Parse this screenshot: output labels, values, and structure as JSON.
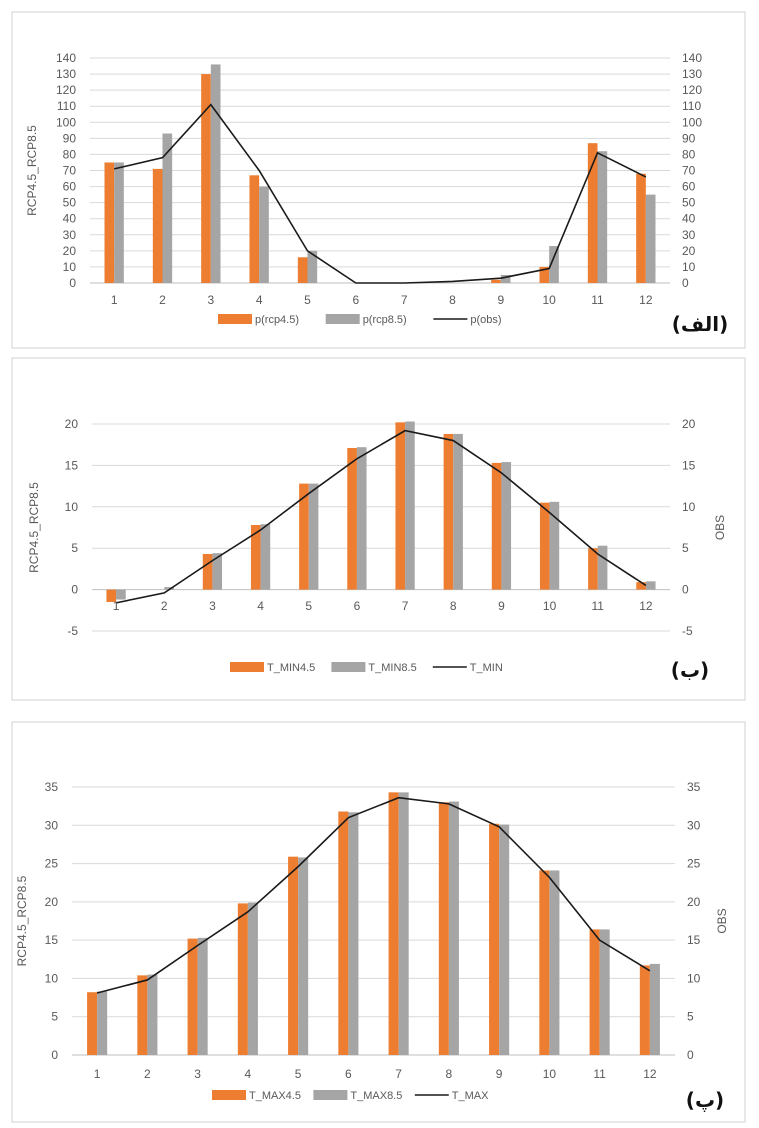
{
  "colors": {
    "rcp45": "#ED7D31",
    "rcp85": "#A5A5A5",
    "obs": "#1a1a1a"
  },
  "chart_data": [
    {
      "panel_label": "(الف)",
      "type": "bar",
      "categories": [
        "1",
        "2",
        "3",
        "4",
        "5",
        "6",
        "7",
        "8",
        "9",
        "10",
        "11",
        "12"
      ],
      "ylabel_left": "RCP4.5_RCP8.5",
      "ylabel_right": "",
      "ylim": [
        0,
        140
      ],
      "ystep": 10,
      "series": [
        {
          "name": "p(rcp4.5)",
          "kind": "bar",
          "values": [
            75,
            71,
            130,
            67,
            16,
            0,
            0,
            0,
            2,
            10,
            87,
            68
          ]
        },
        {
          "name": "p(rcp8.5)",
          "kind": "bar",
          "values": [
            75,
            93,
            136,
            60,
            20,
            0,
            0,
            0,
            5,
            23,
            82,
            55
          ]
        },
        {
          "name": "p(obs)",
          "kind": "line",
          "values": [
            71,
            78,
            111,
            70,
            20,
            0,
            0,
            1,
            3,
            9,
            81,
            66
          ]
        }
      ],
      "legend": "bottom"
    },
    {
      "panel_label": "(ب)",
      "type": "bar",
      "categories": [
        "1",
        "2",
        "3",
        "4",
        "5",
        "6",
        "7",
        "8",
        "9",
        "10",
        "11",
        "12"
      ],
      "ylabel_left": "RCP4.5_RCP8.5",
      "ylabel_right": "OBS",
      "ylim": [
        -5,
        20
      ],
      "ystep": 5,
      "series": [
        {
          "name": "T_MIN4.5",
          "kind": "bar",
          "values": [
            -1.5,
            0,
            4.3,
            7.8,
            12.8,
            17.1,
            20.2,
            18.8,
            15.3,
            10.5,
            5.0,
            0.9
          ]
        },
        {
          "name": "T_MIN8.5",
          "kind": "bar",
          "values": [
            -1.2,
            0.3,
            4.4,
            7.9,
            12.8,
            17.2,
            20.3,
            18.8,
            15.4,
            10.6,
            5.3,
            1.0
          ]
        },
        {
          "name": "T_MIN",
          "kind": "line",
          "values": [
            -1.6,
            -0.4,
            3.5,
            7.2,
            11.6,
            15.8,
            19.2,
            18.0,
            14.1,
            9.3,
            4.3,
            0.5
          ]
        }
      ],
      "legend": "bottom"
    },
    {
      "panel_label": "(پ)",
      "type": "bar",
      "categories": [
        "1",
        "2",
        "3",
        "4",
        "5",
        "6",
        "7",
        "8",
        "9",
        "10",
        "11",
        "12"
      ],
      "ylabel_left": "RCP4.5_RCP8.5",
      "ylabel_right": "OBS",
      "ylim": [
        0,
        35
      ],
      "ystep": 5,
      "series": [
        {
          "name": "T_MAX4.5",
          "kind": "bar",
          "values": [
            8.2,
            10.4,
            15.2,
            19.8,
            25.9,
            31.8,
            34.3,
            33.0,
            30.2,
            24.1,
            16.4,
            11.7
          ]
        },
        {
          "name": "T_MAX8.5",
          "kind": "bar",
          "values": [
            8.3,
            10.5,
            15.3,
            19.9,
            25.8,
            31.7,
            34.3,
            33.1,
            30.1,
            24.1,
            16.4,
            11.9
          ]
        },
        {
          "name": "T_MAX",
          "kind": "line",
          "values": [
            8.1,
            9.8,
            14.3,
            18.7,
            24.6,
            31.0,
            33.6,
            32.8,
            29.8,
            23.2,
            15.0,
            11.0
          ]
        }
      ],
      "legend": "bottom"
    }
  ]
}
